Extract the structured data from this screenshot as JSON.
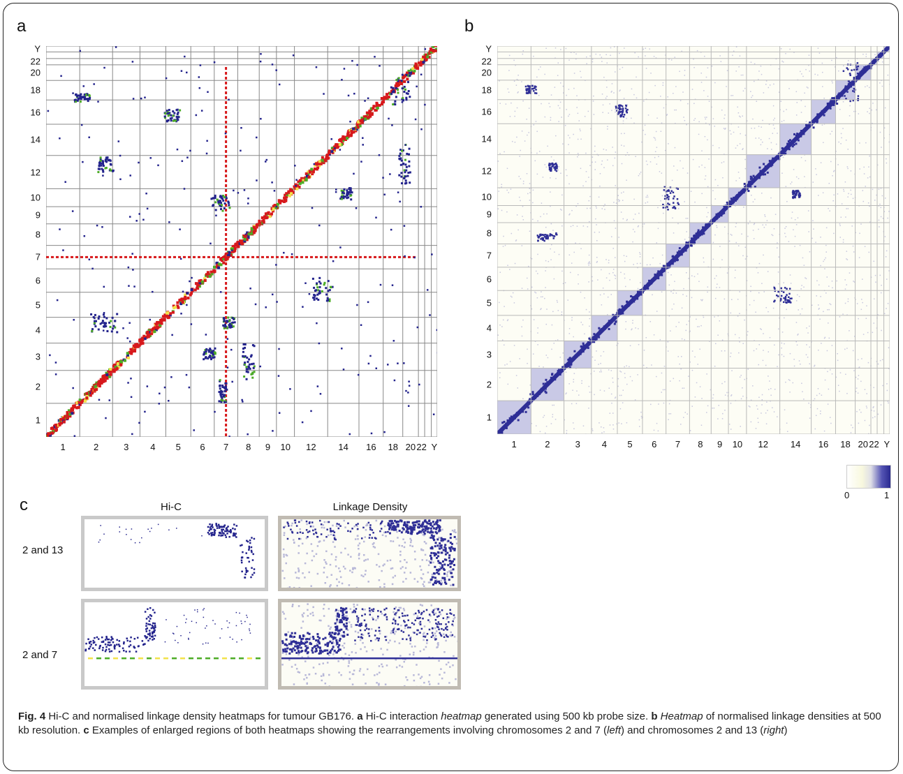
{
  "panels": {
    "a": {
      "letter": "a"
    },
    "b": {
      "letter": "b"
    },
    "c": {
      "letter": "c"
    }
  },
  "heatmap_labels": {
    "y": [
      "Y",
      "22",
      "20",
      "18",
      "16",
      "14",
      "12",
      "10",
      "9",
      "8",
      "7",
      "6",
      "5",
      "4",
      "3",
      "2",
      "1"
    ],
    "x": [
      "1",
      "2",
      "3",
      "4",
      "5",
      "6",
      "7",
      "8",
      "9",
      "10",
      "12",
      "14",
      "16",
      "18",
      "20",
      "22",
      "Y"
    ]
  },
  "colors": {
    "hic_red": "#d7191c",
    "hic_green": "#4dac26",
    "hic_yellow": "#f2e24a",
    "hic_blue": "#23238c",
    "ld_blue": "#2e2e96",
    "grid": "#888888",
    "inset_hic_frame": "#c9c9c9",
    "inset_ld_frame": "#c0bbb2"
  },
  "colorbar": {
    "min_label": "0",
    "max_label": "1"
  },
  "insets": {
    "col_titles": [
      "Hi-C",
      "Linkage Density"
    ],
    "row_labels": [
      "2 and 13",
      "2 and 7"
    ]
  },
  "caption": {
    "fig": "Fig. 4",
    "text1": " Hi-C and normalised linkage density heatmaps for tumour GB176. ",
    "a": "a",
    "text2": " Hi-C interaction ",
    "heatmap1": "heatmap",
    "text3": " generated using 500 kb probe size. ",
    "b": "b",
    "heatmap2": "Heatmap",
    "text4": " of normalised linkage densities at 500 kb resolution. ",
    "c": "c",
    "text5": " Examples of enlarged regions of both heatmaps showing the rearrangements involving chromosomes 2 and 7 (",
    "left": "left",
    "text6": ") and chromosomes 2 and 13 (",
    "right": "right",
    "text7": ")"
  }
}
